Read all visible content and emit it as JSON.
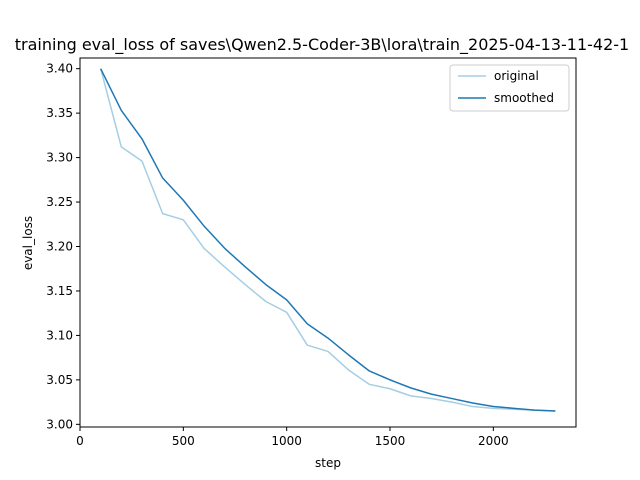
{
  "chart_data": {
    "type": "line",
    "title": "training eval_loss of saves\\Qwen2.5-Coder-3B\\lora\\train_2025-04-13-11-42-1",
    "xlabel": "step",
    "ylabel": "eval_loss",
    "xlim": [
      0,
      2400
    ],
    "ylim": [
      2.997,
      3.412
    ],
    "xticks": [
      0,
      500,
      1000,
      1500,
      2000
    ],
    "yticks": [
      3.0,
      3.05,
      3.1,
      3.15,
      3.2,
      3.25,
      3.3,
      3.35,
      3.4
    ],
    "xtick_labels": [
      "0",
      "500",
      "1000",
      "1500",
      "2000"
    ],
    "ytick_labels": [
      "3.00",
      "3.05",
      "3.10",
      "3.15",
      "3.20",
      "3.25",
      "3.30",
      "3.35",
      "3.40"
    ],
    "grid": false,
    "legend_position": "top-right",
    "x": [
      100,
      200,
      300,
      400,
      500,
      600,
      700,
      800,
      900,
      1000,
      1100,
      1200,
      1300,
      1400,
      1500,
      1600,
      1700,
      1800,
      1900,
      2000,
      2100,
      2200,
      2300
    ],
    "series": [
      {
        "name": "original",
        "color": "#a6cee3",
        "values": [
          3.4,
          3.312,
          3.296,
          3.237,
          3.23,
          3.198,
          3.177,
          3.157,
          3.138,
          3.126,
          3.089,
          3.082,
          3.061,
          3.045,
          3.04,
          3.032,
          3.029,
          3.025,
          3.02,
          3.018,
          3.017,
          3.016,
          3.015
        ]
      },
      {
        "name": "smoothed",
        "color": "#1f78b4",
        "values": [
          3.4,
          3.353,
          3.321,
          3.277,
          3.252,
          3.223,
          3.198,
          3.177,
          3.157,
          3.14,
          3.113,
          3.097,
          3.078,
          3.06,
          3.05,
          3.041,
          3.034,
          3.029,
          3.024,
          3.02,
          3.018,
          3.016,
          3.015
        ]
      }
    ]
  }
}
